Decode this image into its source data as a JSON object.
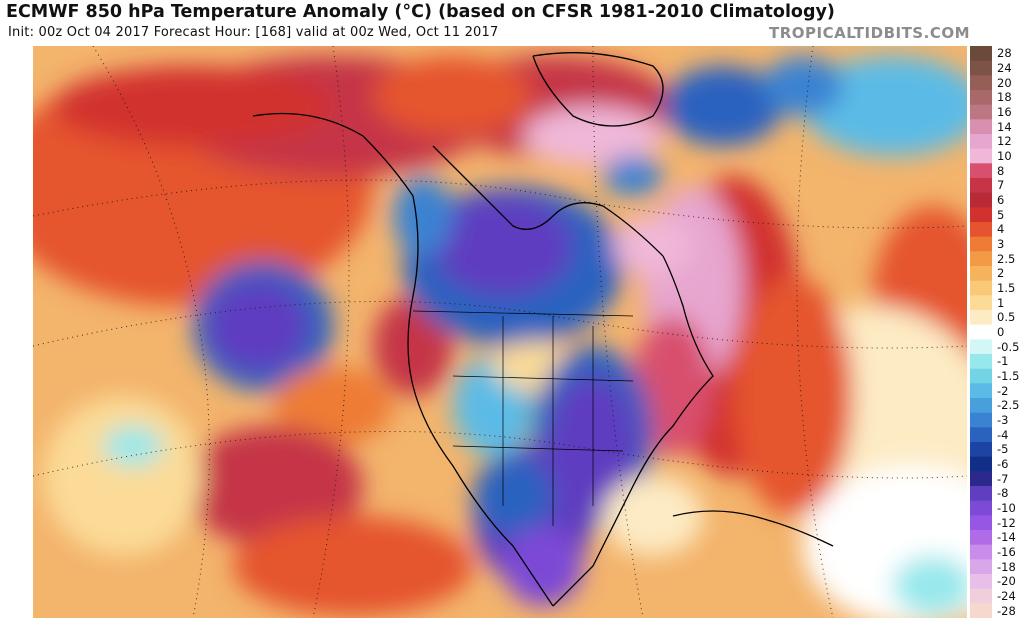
{
  "header": {
    "title": "ECMWF 850 hPa Temperature Anomaly (°C) (based on CFSR 1981-2010 Climatology)",
    "subtitle": "Init: 00z Oct 04 2017   Forecast Hour: [168]   valid at 00z Wed, Oct 11 2017",
    "brand": "TROPICALTIDBITS.COM"
  },
  "colorbar": {
    "labels": [
      "28",
      "24",
      "20",
      "18",
      "16",
      "14",
      "12",
      "10",
      "8",
      "7",
      "6",
      "5",
      "4",
      "3",
      "2.5",
      "2",
      "1.5",
      "1",
      "0.5",
      "0",
      "-0.5",
      "-1",
      "-1.5",
      "-2",
      "-2.5",
      "-3",
      "-4",
      "-5",
      "-6",
      "-7",
      "-8",
      "-10",
      "-12",
      "-14",
      "-16",
      "-18",
      "-20",
      "-24",
      "-28"
    ],
    "colors": [
      "#6b4a3a",
      "#7c5346",
      "#955e56",
      "#a9686a",
      "#bb7883",
      "#d88fb0",
      "#e7a6cf",
      "#f0b7d8",
      "#d8506e",
      "#c53546",
      "#b82a35",
      "#d2322e",
      "#e5542f",
      "#ee7c36",
      "#f29a46",
      "#f6b35c",
      "#f9c977",
      "#fbdb97",
      "#fdebc4",
      "#ffffff",
      "#d3f6f6",
      "#97e8ec",
      "#73d4e6",
      "#5bbbe6",
      "#489fdc",
      "#3a82d2",
      "#2a62c0",
      "#1d44a4",
      "#122f87",
      "#2b2a8c",
      "#5f3ec0",
      "#7c4ad6",
      "#9557e4",
      "#b06ce6",
      "#c98cea",
      "#d9a6ea",
      "#e7bfe8",
      "#f0cfdd",
      "#f6d8cf"
    ]
  }
}
